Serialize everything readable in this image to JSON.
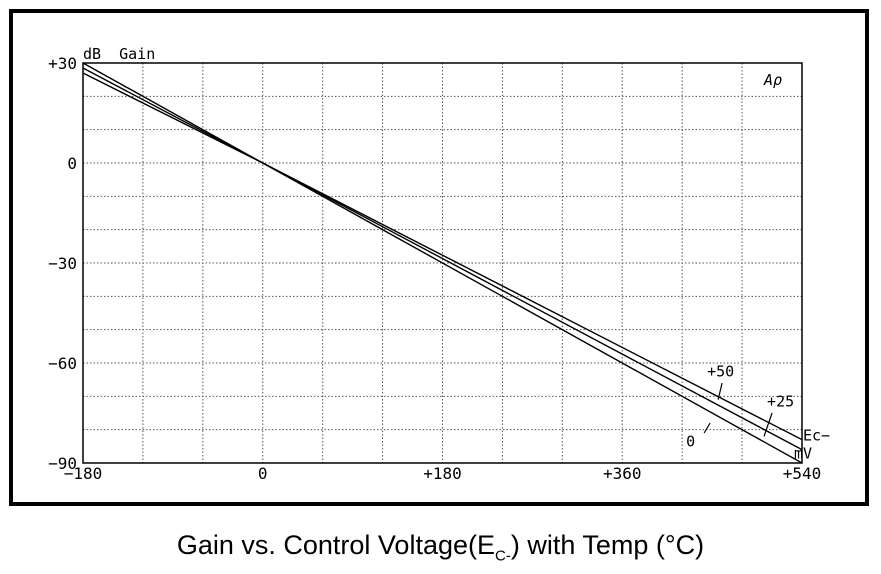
{
  "caption": {
    "main": "Gain vs. Control Voltage(E",
    "sub": "C-",
    "tail": ") with Temp (°C)"
  },
  "chart_data": {
    "type": "line",
    "title": "Gain vs. Control Voltage(EC-) with Temp (°C)",
    "ylabel": "dB  Gain",
    "xlabel": "Ec− mV",
    "xlabel_top": "Ec−",
    "xlabel_bottom": "mV",
    "corner_label": "Aρ",
    "xlim": [
      -180,
      540
    ],
    "ylim": [
      -90,
      30
    ],
    "x_ticks": [
      -180,
      0,
      180,
      360,
      540
    ],
    "x_tick_labels": [
      "−180",
      "0",
      "+180",
      "+360",
      "+540"
    ],
    "y_ticks": [
      30,
      0,
      -30,
      -60,
      -90
    ],
    "y_tick_labels": [
      "+30",
      "0",
      "−30",
      "−60",
      "−90"
    ],
    "grid": true,
    "grid_x_step": 60,
    "grid_y_step": 10,
    "series": [
      {
        "name": "+50",
        "x": [
          -180,
          0,
          540
        ],
        "y": [
          27,
          0,
          -83
        ]
      },
      {
        "name": "+25",
        "x": [
          -180,
          0,
          540
        ],
        "y": [
          28.5,
          0,
          -86
        ]
      },
      {
        "name": "0",
        "x": [
          -180,
          0,
          540
        ],
        "y": [
          30,
          0,
          -90
        ]
      }
    ],
    "series_labels": [
      {
        "text": "+50",
        "x": 445,
        "y": -64
      },
      {
        "text": "+25",
        "x": 505,
        "y": -73
      },
      {
        "text": "0",
        "x": 424,
        "y": -85
      }
    ]
  }
}
